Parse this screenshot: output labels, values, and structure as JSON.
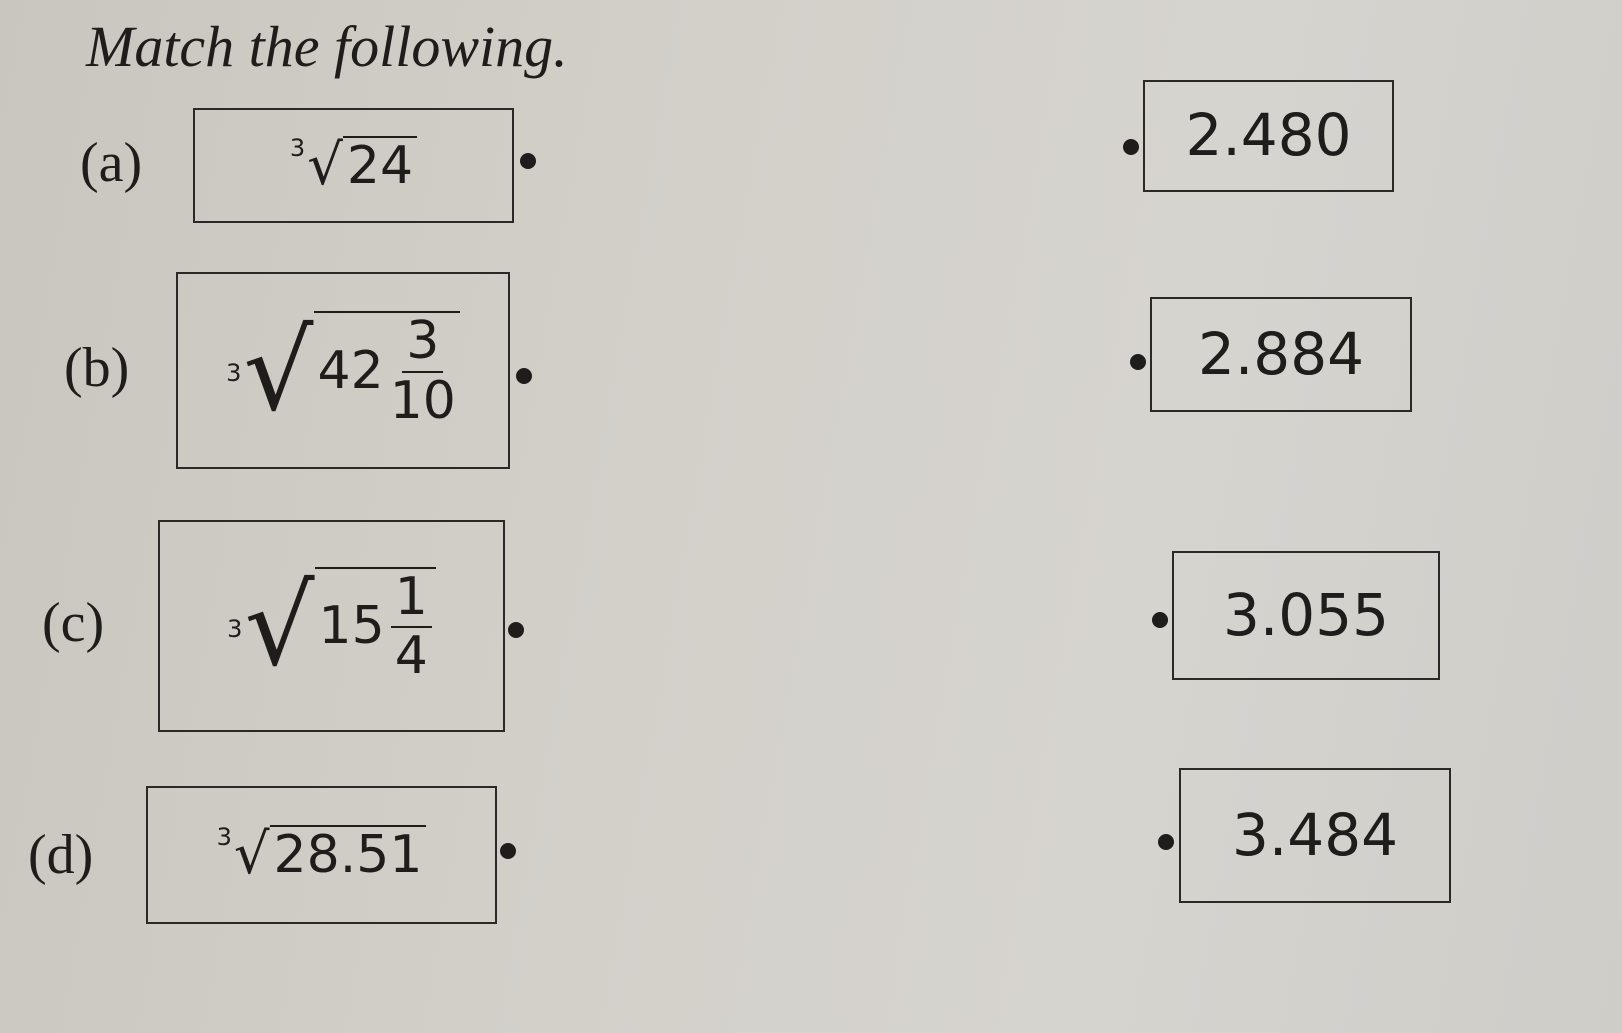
{
  "title": "Match the following.",
  "left_items": [
    {
      "label": "(a)",
      "index": "3",
      "whole": "24",
      "numerator": "",
      "denominator": ""
    },
    {
      "label": "(b)",
      "index": "3",
      "whole": "42",
      "numerator": "3",
      "denominator": "10"
    },
    {
      "label": "(c)",
      "index": "3",
      "whole": "15",
      "numerator": "1",
      "denominator": "4"
    },
    {
      "label": "(d)",
      "index": "3",
      "whole": "28.51",
      "numerator": "",
      "denominator": ""
    }
  ],
  "right_items": [
    "2.480",
    "2.884",
    "3.055",
    "3.484"
  ]
}
